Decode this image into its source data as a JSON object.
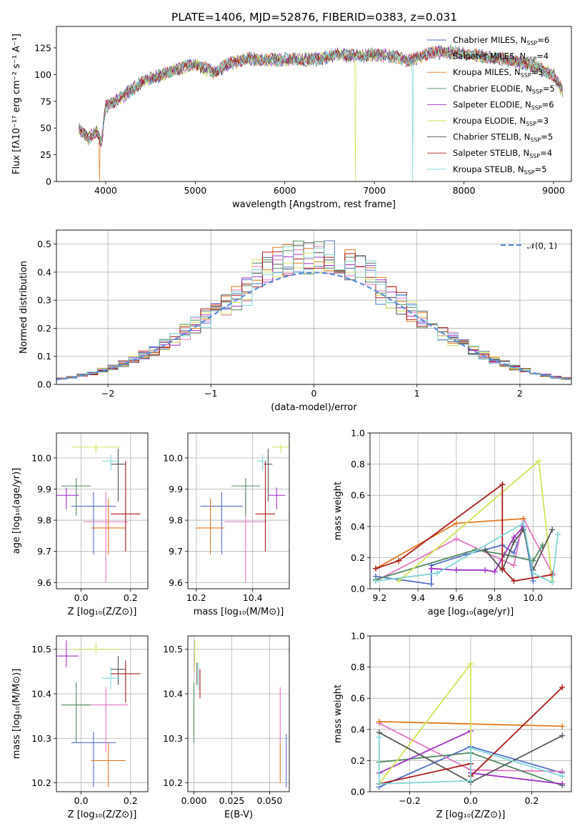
{
  "colors": {
    "Chabrier MILES": "#5470c6",
    "Salpeter MILES": "#e377c2",
    "Kroupa MILES": "#e07a1f",
    "Chabrier ELODIE": "#4f8a5f",
    "Salpeter ELODIE": "#a033c5",
    "Kroupa ELODIE": "#d4e35a",
    "Chabrier STELIB": "#555555",
    "Salpeter STELIB": "#ad1a1a",
    "Kroupa STELIB": "#7fd6d6"
  },
  "chart_data": [
    {
      "id": "spectrum",
      "type": "line",
      "title": "PLATE=1406, MJD=52876, FIBERID=0383, z=0.031",
      "xlabel": "wavelength [Angstrom, rest frame]",
      "ylabel": "Flux [fλ10⁻¹⁷ erg cm⁻² s⁻¹ A⁻¹]",
      "xlim": [
        3450,
        9200
      ],
      "ylim": [
        0,
        145
      ],
      "xticks": [
        "4000",
        "5000",
        "6000",
        "7000",
        "8000",
        "9000"
      ],
      "yticks": [
        "0",
        "25",
        "50",
        "75",
        "100",
        "125"
      ],
      "grid": false,
      "legend_position": "top-right",
      "spectrum_shape": {
        "x": [
          3700,
          3800,
          3900,
          3950,
          4000,
          4100,
          4200,
          4400,
          4600,
          4800,
          5000,
          5200,
          5400,
          5600,
          5800,
          6000,
          6200,
          6400,
          6600,
          6800,
          7000,
          7200,
          7400,
          7600,
          7800,
          8000,
          8200,
          8400,
          8600,
          8800,
          9000,
          9100
        ],
        "y": [
          50,
          40,
          48,
          35,
          70,
          75,
          80,
          93,
          99,
          105,
          110,
          102,
          111,
          115,
          113,
          114,
          114,
          115,
          119,
          117,
          119,
          117,
          113,
          120,
          121,
          120,
          117,
          115,
          112,
          107,
          100,
          85
        ]
      },
      "spectrum_dips": [
        {
          "x": 3933,
          "y": 0
        },
        {
          "x": 6790,
          "y": 0
        },
        {
          "x": 7425,
          "y": 0
        }
      ],
      "series": [
        {
          "name": "Chabrier MILES, N_SSP=6"
        },
        {
          "name": "Salpeter MILES, N_SSP=4"
        },
        {
          "name": "Kroupa MILES, N_SSP=3"
        },
        {
          "name": "Chabrier ELODIE, N_SSP=5"
        },
        {
          "name": "Salpeter ELODIE, N_SSP=6"
        },
        {
          "name": "Kroupa ELODIE, N_SSP=3"
        },
        {
          "name": "Chabrier STELIB, N_SSP=5"
        },
        {
          "name": "Salpeter STELIB, N_SSP=4"
        },
        {
          "name": "Kroupa STELIB, N_SSP=5"
        }
      ]
    },
    {
      "id": "residuals",
      "type": "line",
      "xlabel": "(data-model)/error",
      "ylabel": "Normed distribution",
      "xlim": [
        -2.5,
        2.5
      ],
      "ylim": [
        0,
        0.55
      ],
      "xticks": [
        "−2",
        "−1",
        "0",
        "1",
        "2"
      ],
      "yticks": [
        "0.0",
        "0.1",
        "0.2",
        "0.3",
        "0.4",
        "0.5"
      ],
      "grid": true,
      "legend_position": "top-right",
      "legend": "𝒩(0, 1)",
      "bin_width": 0.1,
      "bins_start": -2.5
    },
    {
      "id": "age-vs-Z",
      "type": "scatter",
      "xlabel": "Z [log₁₀(Z/Z⊙)]",
      "ylabel": "age  [log₁₀(age/yr)]",
      "xlim": [
        -0.1,
        0.27
      ],
      "ylim": [
        9.58,
        10.08
      ],
      "xticks": [
        "0.0",
        "0.2"
      ],
      "yticks": [
        "9.6",
        "9.7",
        "9.8",
        "9.9",
        "10.0"
      ],
      "grid": true
    },
    {
      "id": "age-vs-mass",
      "type": "scatter",
      "xlabel": "mass [log₁₀(M/M⊙)]",
      "xlim": [
        10.17,
        10.53
      ],
      "ylim": [
        9.58,
        10.08
      ],
      "xticks": [
        "10.2",
        "10.4"
      ],
      "yticks": [
        "9.6",
        "9.7",
        "9.8",
        "9.9",
        "10.0"
      ],
      "grid": true
    },
    {
      "id": "weight-vs-age",
      "type": "line",
      "xlabel": "age  [log₁₀(age/yr)]",
      "ylabel": "mass weight",
      "xlim": [
        9.15,
        10.2
      ],
      "ylim": [
        0,
        1.0
      ],
      "xticks": [
        "9.2",
        "9.4",
        "9.6",
        "9.8",
        "10.0"
      ],
      "yticks": [
        "0.0",
        "0.2",
        "0.4",
        "0.6",
        "0.8",
        "1.0"
      ],
      "grid": true
    },
    {
      "id": "mass-vs-Z",
      "type": "scatter",
      "xlabel": "Z [log₁₀(Z/Z⊙)]",
      "ylabel": "mass [log₁₀(M/M⊙)]",
      "xlim": [
        -0.1,
        0.27
      ],
      "ylim": [
        10.18,
        10.53
      ],
      "xticks": [
        "0.0",
        "0.2"
      ],
      "yticks": [
        "10.2",
        "10.3",
        "10.4",
        "10.5"
      ],
      "grid": true
    },
    {
      "id": "mass-vs-ebv",
      "type": "scatter",
      "xlabel": "E(B-V)",
      "xlim": [
        -0.004,
        0.063
      ],
      "ylim": [
        10.18,
        10.53
      ],
      "xticks": [
        "0.000",
        "0.025",
        "0.050"
      ],
      "yticks": [
        "10.2",
        "10.3",
        "10.4",
        "10.5"
      ],
      "grid": true
    },
    {
      "id": "weight-vs-Z",
      "type": "line",
      "xlabel": "Z [log₁₀(Z/Z⊙)]",
      "ylabel": "mass weight",
      "xlim": [
        -0.33,
        0.33
      ],
      "ylim": [
        0,
        1.0
      ],
      "xticks": [
        "−0.2",
        "0.0",
        "0.2"
      ],
      "yticks": [
        "0.0",
        "0.2",
        "0.4",
        "0.6",
        "0.8",
        "1.0"
      ],
      "grid": true
    }
  ],
  "model_points": [
    {
      "model": "Chabrier MILES",
      "Z": 0.05,
      "Zerr": 0.09,
      "age": 9.845,
      "ageLo": 9.69,
      "ageHi": 9.89,
      "mass": 10.29,
      "massErr": 0.075,
      "massLo": 10.19,
      "massHi": 10.315,
      "ebv": 0.061,
      "ebvLo": 10.19,
      "ebvHi": 10.31
    },
    {
      "model": "Salpeter MILES",
      "Z": 0.1,
      "Zerr": 0.09,
      "age": 9.795,
      "ageLo": 9.6,
      "ageHi": 9.89,
      "mass": 10.375,
      "massErr": 0.075,
      "massLo": 10.27,
      "massHi": 10.415,
      "ebv": 0.057,
      "ebvLo": 10.29,
      "ebvHi": 10.415
    },
    {
      "model": "Kroupa MILES",
      "Z": 0.11,
      "Zerr": 0.07,
      "age": 9.775,
      "ageLo": 9.69,
      "ageHi": 9.87,
      "mass": 10.25,
      "massErr": 0.05,
      "massLo": 10.19,
      "massHi": 10.29,
      "ebv": 0.057,
      "ebvLo": 10.2,
      "ebvHi": 10.29
    },
    {
      "model": "Chabrier ELODIE",
      "Z": -0.02,
      "Zerr": 0.06,
      "age": 9.91,
      "ageLo": 9.815,
      "ageHi": 9.935,
      "mass": 10.375,
      "massErr": 0.05,
      "massLo": 10.29,
      "massHi": 10.425,
      "ebv": 0.0,
      "ebvLo": 10.29,
      "ebvHi": 10.425
    },
    {
      "model": "Salpeter ELODIE",
      "Z": -0.06,
      "Zerr": 0.05,
      "age": 9.88,
      "ageLo": 9.835,
      "ageHi": 9.905,
      "mass": 10.485,
      "massErr": 0.03,
      "massLo": 10.46,
      "massHi": 10.52,
      "ebv": 0.0005,
      "ebvLo": 10.46,
      "ebvHi": 10.52
    },
    {
      "model": "Kroupa ELODIE",
      "Z": 0.06,
      "Zerr": 0.1,
      "age": 10.035,
      "ageLo": 10.015,
      "ageHi": 10.045,
      "mass": 10.5,
      "massErr": 0.03,
      "massLo": 10.49,
      "massHi": 10.515,
      "ebv": 0.0005,
      "ebvLo": 10.45,
      "ebvHi": 10.52
    },
    {
      "model": "Chabrier STELIB",
      "Z": 0.15,
      "Zerr": 0.03,
      "age": 9.98,
      "ageLo": 9.86,
      "ageHi": 10.03,
      "mass": 10.455,
      "massErr": 0.015,
      "massLo": 10.42,
      "massHi": 10.485,
      "ebv": 0.002,
      "ebvLo": 10.42,
      "ebvHi": 10.47
    },
    {
      "model": "Salpeter STELIB",
      "Z": 0.18,
      "Zerr": 0.06,
      "age": 9.82,
      "ageLo": 9.7,
      "ageHi": 9.99,
      "mass": 10.445,
      "massErr": 0.035,
      "massLo": 10.38,
      "massHi": 10.475,
      "ebv": 0.004,
      "ebvLo": 10.39,
      "ebvHi": 10.455
    },
    {
      "model": "Kroupa STELIB",
      "Z": 0.12,
      "Zerr": 0.035,
      "age": 9.99,
      "ageLo": 9.96,
      "ageHi": 10.01,
      "mass": 10.435,
      "massErr": 0.02,
      "massLo": 10.41,
      "massHi": 10.46,
      "ebv": 0.003,
      "ebvLo": 10.41,
      "ebvHi": 10.47
    }
  ],
  "weights_vs_age": [
    {
      "model": "Chabrier MILES",
      "points": [
        [
          9.18,
          0.08
        ],
        [
          9.47,
          0.03
        ],
        [
          9.47,
          0.15
        ],
        [
          9.65,
          0.22
        ],
        [
          9.84,
          0.28
        ],
        [
          9.9,
          0.23
        ],
        [
          9.95,
          0.4
        ],
        [
          10.0,
          0.05
        ]
      ]
    },
    {
      "model": "Salpeter MILES",
      "points": [
        [
          9.18,
          0.05
        ],
        [
          9.6,
          0.32
        ],
        [
          9.9,
          0.15
        ],
        [
          9.95,
          0.45
        ],
        [
          10.1,
          0.1
        ]
      ]
    },
    {
      "model": "Kroupa MILES",
      "points": [
        [
          9.18,
          0.13
        ],
        [
          9.6,
          0.42
        ],
        [
          9.95,
          0.45
        ]
      ]
    },
    {
      "model": "Chabrier ELODIE",
      "points": [
        [
          9.18,
          0.06
        ],
        [
          9.7,
          0.25
        ],
        [
          9.85,
          0.22
        ],
        [
          10.0,
          0.18
        ],
        [
          10.05,
          0.28
        ]
      ]
    },
    {
      "model": "Salpeter ELODIE",
      "points": [
        [
          9.47,
          0.13
        ],
        [
          9.6,
          0.12
        ],
        [
          9.75,
          0.12
        ],
        [
          9.8,
          0.11
        ],
        [
          9.9,
          0.33
        ],
        [
          9.95,
          0.4
        ]
      ]
    },
    {
      "model": "Kroupa ELODIE",
      "points": [
        [
          9.3,
          0.05
        ],
        [
          10.03,
          0.82
        ],
        [
          10.1,
          0.05
        ]
      ]
    },
    {
      "model": "Chabrier STELIB",
      "points": [
        [
          9.75,
          0.25
        ],
        [
          9.84,
          0.12
        ],
        [
          9.9,
          0.3
        ],
        [
          9.95,
          0.38
        ],
        [
          10.0,
          0.12
        ],
        [
          10.1,
          0.38
        ]
      ]
    },
    {
      "model": "Salpeter STELIB",
      "points": [
        [
          9.18,
          0.13
        ],
        [
          9.3,
          0.18
        ],
        [
          9.84,
          0.67
        ],
        [
          9.84,
          0.13
        ],
        [
          9.9,
          0.05
        ],
        [
          10.1,
          0.09
        ]
      ]
    },
    {
      "model": "Kroupa STELIB",
      "points": [
        [
          9.18,
          0.05
        ],
        [
          9.5,
          0.1
        ],
        [
          9.95,
          0.42
        ],
        [
          10.0,
          0.1
        ],
        [
          10.1,
          0.04
        ],
        [
          10.13,
          0.35
        ]
      ]
    }
  ],
  "weights_vs_Z": [
    {
      "model": "Chabrier MILES",
      "points": [
        [
          -0.3,
          0.03
        ],
        [
          0.0,
          0.29
        ],
        [
          0.3,
          0.12
        ]
      ]
    },
    {
      "model": "Salpeter MILES",
      "points": [
        [
          -0.3,
          0.44
        ],
        [
          0.0,
          0.14
        ],
        [
          0.3,
          0.13
        ]
      ]
    },
    {
      "model": "Kroupa MILES",
      "points": [
        [
          -0.3,
          0.45
        ],
        [
          0.3,
          0.42
        ]
      ]
    },
    {
      "model": "Chabrier ELODIE",
      "points": [
        [
          -0.3,
          0.19
        ],
        [
          0.0,
          0.25
        ],
        [
          0.3,
          0.04
        ]
      ]
    },
    {
      "model": "Salpeter ELODIE",
      "points": [
        [
          -0.3,
          0.12
        ],
        [
          0.0,
          0.39
        ],
        [
          0.0,
          0.12
        ],
        [
          0.3,
          0.05
        ]
      ]
    },
    {
      "model": "Kroupa ELODIE",
      "points": [
        [
          -0.3,
          0.05
        ],
        [
          0.0,
          0.82
        ],
        [
          0.0,
          0.1
        ]
      ]
    },
    {
      "model": "Chabrier STELIB",
      "points": [
        [
          -0.3,
          0.38
        ],
        [
          0.0,
          0.06
        ],
        [
          0.3,
          0.36
        ]
      ]
    },
    {
      "model": "Salpeter STELIB",
      "points": [
        [
          -0.3,
          0.05
        ],
        [
          0.0,
          0.18
        ],
        [
          0.0,
          0.1
        ],
        [
          0.3,
          0.67
        ]
      ]
    },
    {
      "model": "Kroupa STELIB",
      "points": [
        [
          -0.3,
          0.35
        ],
        [
          -0.3,
          0.05
        ],
        [
          0.0,
          0.07
        ],
        [
          0.0,
          0.28
        ],
        [
          0.3,
          0.1
        ]
      ]
    }
  ]
}
